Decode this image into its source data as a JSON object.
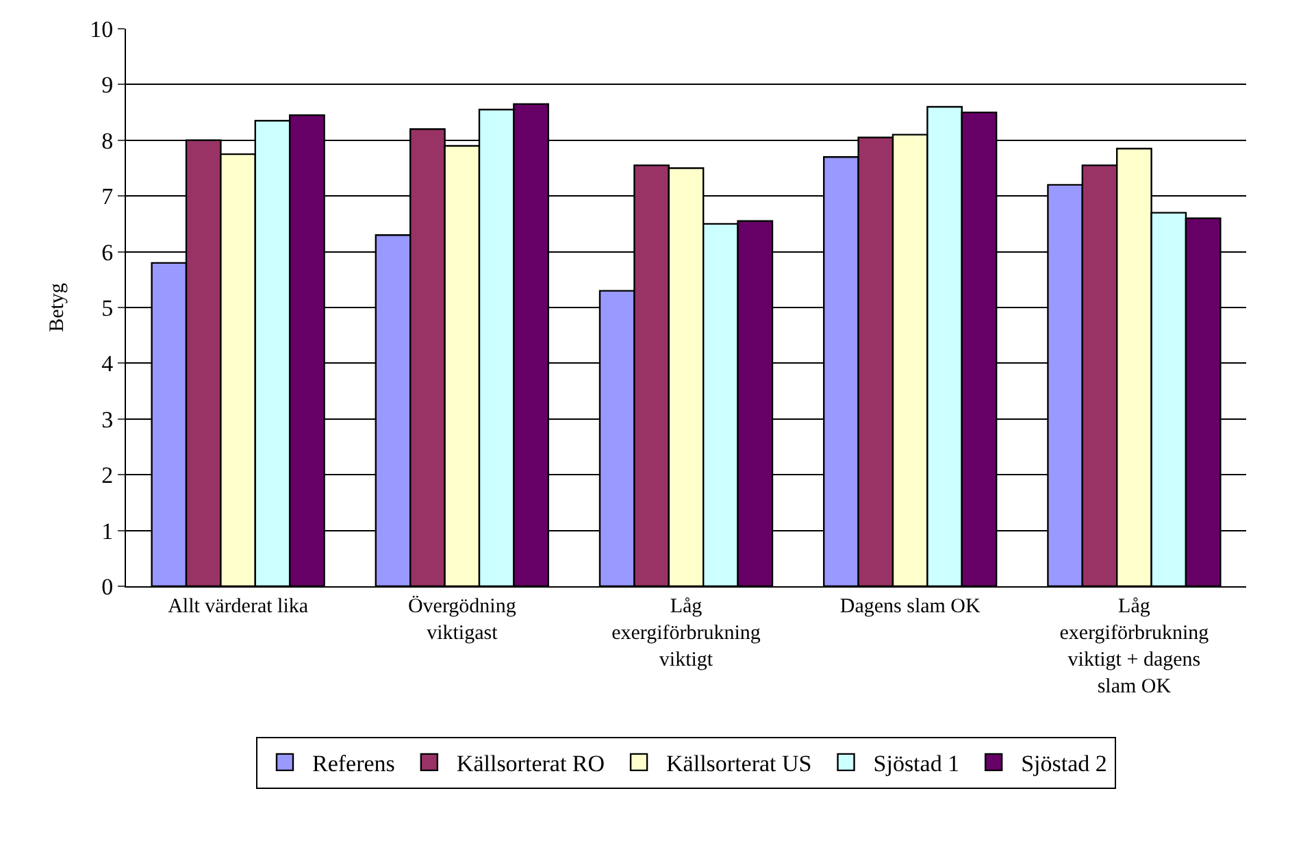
{
  "chart_data": {
    "type": "bar",
    "ylabel": "Betyg",
    "categories": [
      "Allt värderat lika",
      "Övergödning viktigast",
      "Låg exergiförbrukning viktigt",
      "Dagens slam OK",
      "Låg exergiförbrukning viktigt + dagens slam OK"
    ],
    "series": [
      {
        "name": "Referens",
        "color": "#9999ff",
        "values": [
          5.8,
          6.3,
          5.3,
          7.7,
          7.2
        ]
      },
      {
        "name": "Källsorterat RO",
        "color": "#993366",
        "values": [
          8.0,
          8.2,
          7.55,
          8.05,
          7.55
        ]
      },
      {
        "name": "Källsorterat US",
        "color": "#ffffcc",
        "values": [
          7.75,
          7.9,
          7.5,
          8.1,
          7.85
        ]
      },
      {
        "name": "Sjöstad 1",
        "color": "#ccffff",
        "values": [
          8.35,
          8.55,
          6.5,
          8.6,
          6.7
        ]
      },
      {
        "name": "Sjöstad 2",
        "color": "#660066",
        "values": [
          8.45,
          8.65,
          6.55,
          8.5,
          6.6
        ]
      }
    ],
    "ylim": [
      0,
      10
    ],
    "yticks": [
      0,
      1,
      2,
      3,
      4,
      5,
      6,
      7,
      8,
      9,
      10
    ],
    "grid": "y",
    "legend": "bottom"
  }
}
